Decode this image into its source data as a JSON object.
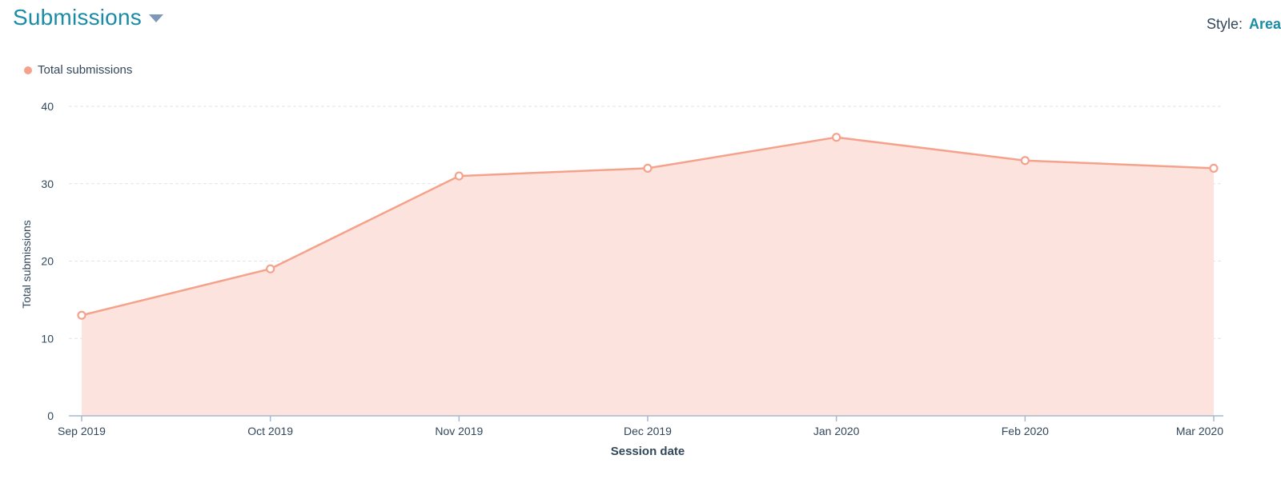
{
  "header": {
    "title": "Submissions",
    "style_label": "Style:",
    "style_value": "Area"
  },
  "colors": {
    "accent": "#1b8ca6",
    "series_line": "#f5a28c",
    "series_fill": "#fde3dd",
    "grid": "#dfe3eb",
    "axis": "#a8b8cc"
  },
  "chart_data": {
    "type": "area",
    "x": [
      "Sep 2019",
      "Oct 2019",
      "Nov 2019",
      "Dec 2019",
      "Jan 2020",
      "Feb 2020",
      "Mar 2020"
    ],
    "series": [
      {
        "name": "Total submissions",
        "values": [
          13,
          19,
          31,
          32,
          36,
          33,
          32
        ]
      }
    ],
    "xlabel": "Session date",
    "ylabel": "Total submissions",
    "ylim": [
      0,
      40
    ],
    "yticks": [
      0,
      10,
      20,
      30,
      40
    ],
    "grid": true,
    "legend_position": "top-left"
  }
}
